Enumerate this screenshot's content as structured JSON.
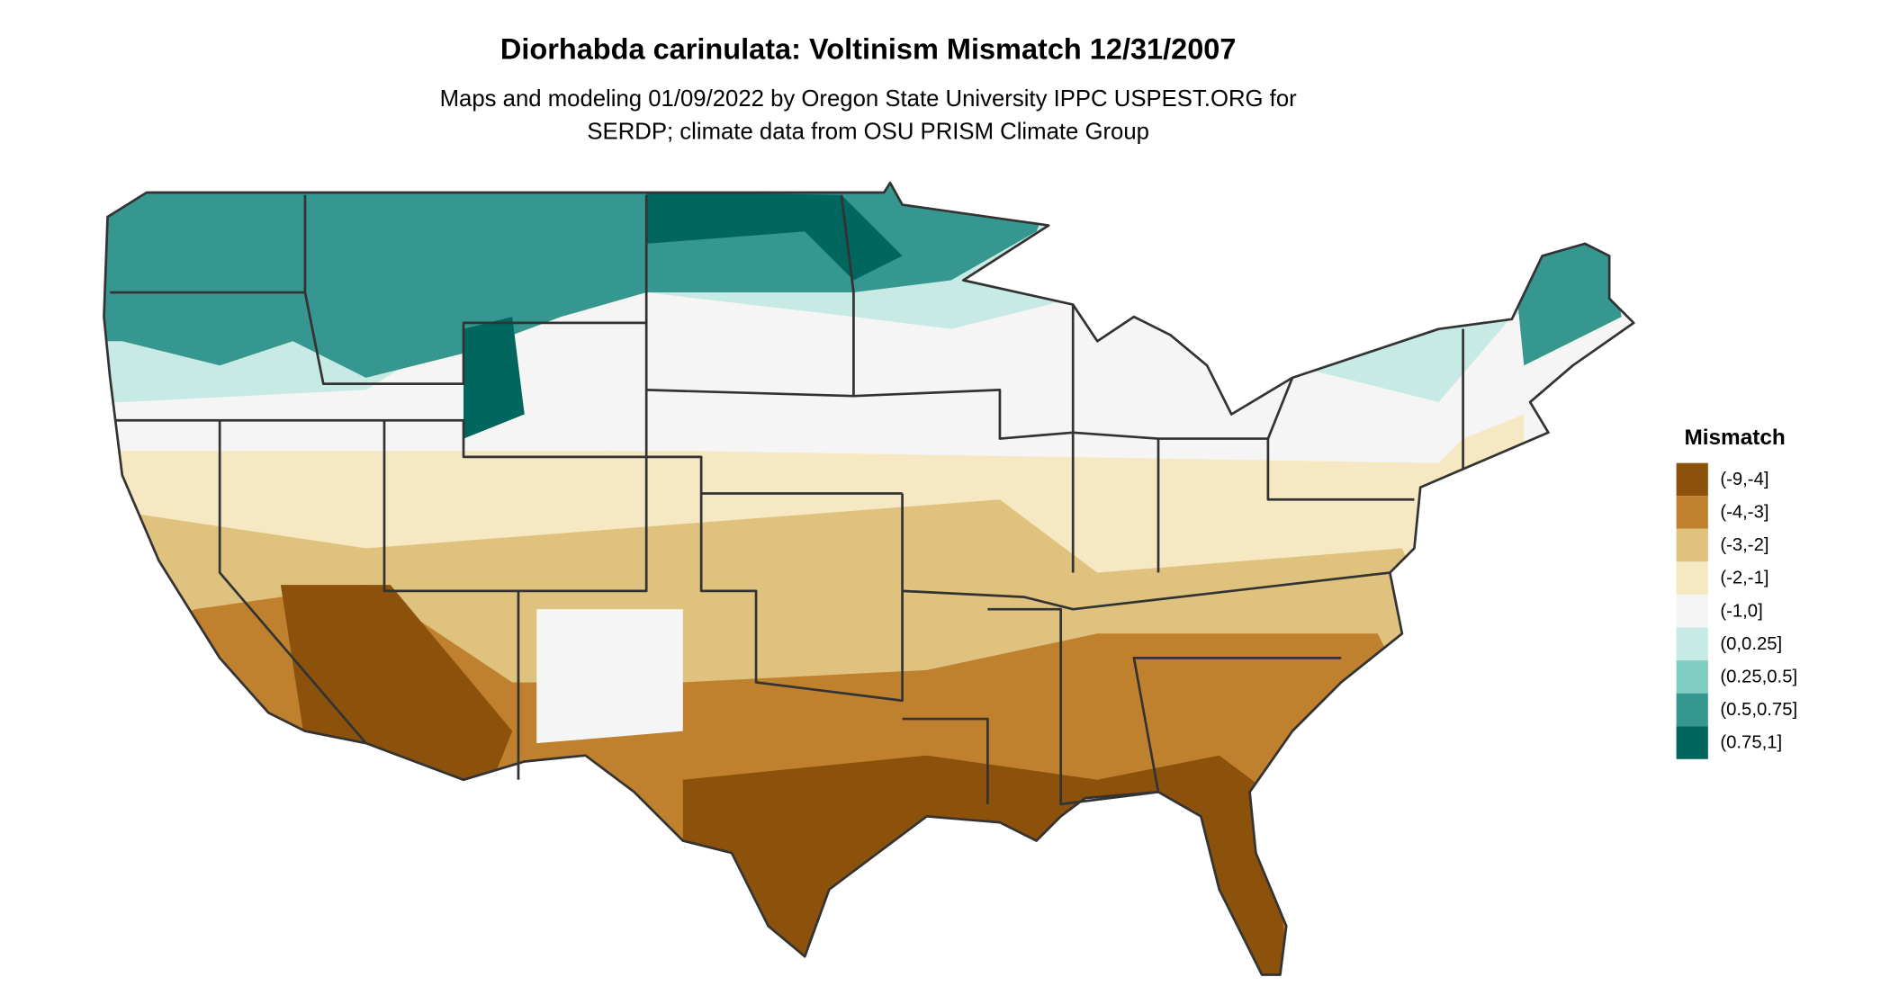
{
  "map": {
    "title": "Diorhabda carinulata: Voltinism Mismatch 12/31/2007",
    "subtitle": [
      "Maps and modeling 01/09/2022 by Oregon State University IPPC USPEST.ORG for",
      "SERDP; climate data from OSU PRISM Climate Group"
    ],
    "legend": {
      "title": "Mismatch",
      "items": [
        {
          "label": "(-9,-4]",
          "color": "#8c510a"
        },
        {
          "label": "(-4,-3]",
          "color": "#bf812d"
        },
        {
          "label": "(-3,-2]",
          "color": "#dfc27d"
        },
        {
          "label": "(-2,-1]",
          "color": "#f6e8c3"
        },
        {
          "label": "(-1,0]",
          "color": "#f5f5f5"
        },
        {
          "label": "(0,0.25]",
          "color": "#c7eae5"
        },
        {
          "label": "(0.25,0.5]",
          "color": "#80cdc1"
        },
        {
          "label": "(0.5,0.75]",
          "color": "#35978f"
        },
        {
          "label": "(0.75,1]",
          "color": "#01665e"
        }
      ]
    }
  }
}
